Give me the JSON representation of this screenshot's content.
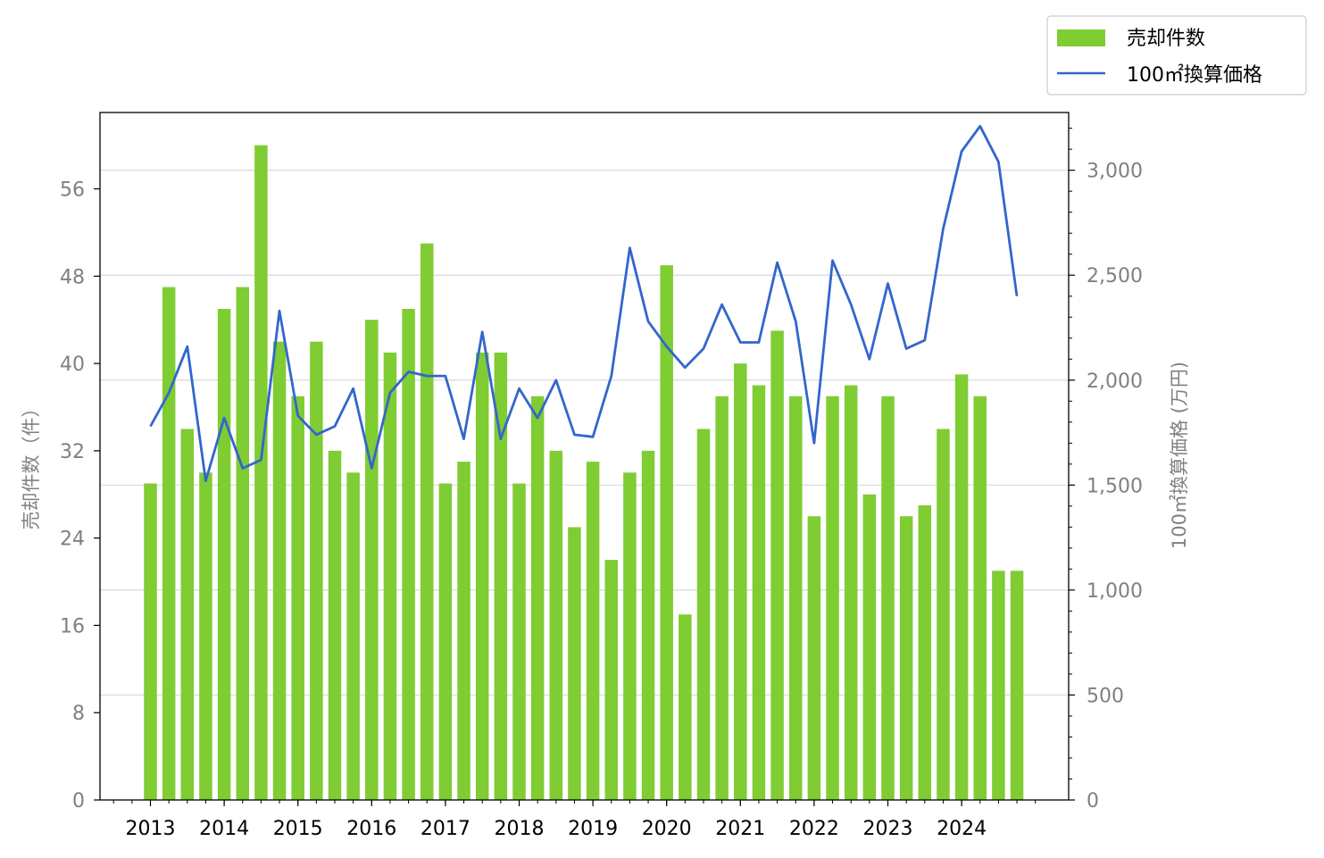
{
  "chart_data": {
    "type": "bar",
    "x_ticks": [
      "2013",
      "2014",
      "2015",
      "2016",
      "2017",
      "2018",
      "2019",
      "2020",
      "2021",
      "2022",
      "2023",
      "2024"
    ],
    "ylabel_left": "売却件数（件）",
    "ylabel_right": "100㎡換算価格 (万円)",
    "ylim_left": [
      0,
      63
    ],
    "ylim_right": [
      0,
      3275
    ],
    "yticks_left": [
      0,
      8,
      16,
      24,
      32,
      40,
      48,
      56
    ],
    "yticks_right": [
      0,
      500,
      1000,
      1500,
      2000,
      2500,
      3000
    ],
    "ytick_labels_right": [
      "0",
      "500",
      "1,000",
      "1,500",
      "2,000",
      "2,500",
      "3,000"
    ],
    "grid": "horizontal, right axis",
    "legend_position": "top-right, outside plot",
    "series": [
      {
        "name": "売却件数",
        "type": "bar",
        "axis": "left",
        "color": "#7fcc33",
        "values": [
          29,
          47,
          34,
          30,
          45,
          47,
          60,
          42,
          37,
          42,
          32,
          30,
          44,
          41,
          45,
          51,
          29,
          31,
          41,
          41,
          29,
          37,
          32,
          25,
          31,
          22,
          30,
          32,
          49,
          17,
          34,
          37,
          40,
          38,
          43,
          37,
          26,
          37,
          38,
          28,
          37,
          26,
          27,
          34,
          39,
          37,
          21,
          21
        ]
      },
      {
        "name": "100㎡換算価格",
        "type": "line",
        "axis": "right",
        "color": "#3366cc",
        "values": [
          1780,
          1940,
          2160,
          1520,
          1820,
          1580,
          1620,
          2330,
          1830,
          1740,
          1780,
          1960,
          1580,
          1940,
          2040,
          2020,
          2020,
          1720,
          2230,
          1720,
          1960,
          1820,
          2000,
          1740,
          1730,
          2020,
          2630,
          2280,
          2160,
          2060,
          2150,
          2360,
          2180,
          2180,
          2560,
          2280,
          1700,
          2570,
          2360,
          2100,
          2460,
          2150,
          2190,
          2720,
          3090,
          3210,
          3040,
          2400
        ]
      }
    ]
  }
}
